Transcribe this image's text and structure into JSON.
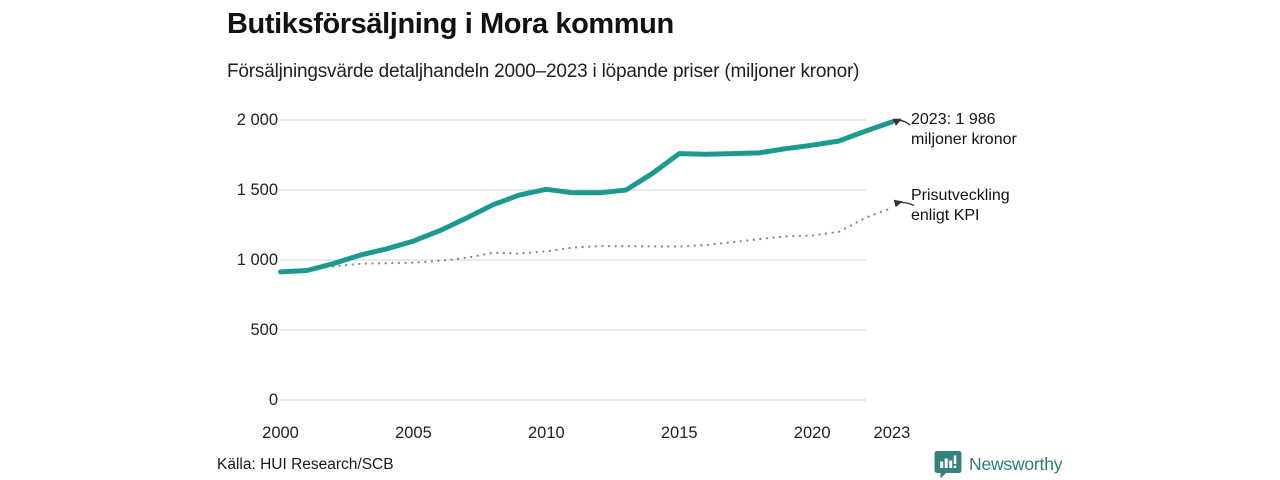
{
  "header": {
    "title": "Butiksförsäljning i Mora kommun",
    "subtitle": "Försäljningsvärde detaljhandeln 2000–2023 i löpande priser (miljoner kronor)"
  },
  "annotations": [
    {
      "line1": "2023: 1 986",
      "line2": "miljoner kronor",
      "target_series": "Butiksförsäljning"
    },
    {
      "line1": "Prisutveckling",
      "line2": "enligt KPI",
      "target_series": "KPI"
    }
  ],
  "footer": {
    "source": "Källa: HUI Research/SCB",
    "brand_name": "Newsworthy",
    "brand_icon": "newsworthy-logo-icon"
  },
  "colors": {
    "sales_line": "#1d9a8f",
    "kpi_line": "#8c8c8c",
    "gridline": "#dcdcdc",
    "brand_teal": "#2e7d74",
    "brand_icon_fill": "#35837a",
    "arrow": "#333333"
  },
  "chart_data": {
    "type": "line",
    "title": "Butiksförsäljning i Mora kommun",
    "subtitle": "Försäljningsvärde detaljhandeln 2000–2023 i löpande priser (miljoner kronor)",
    "x": [
      2000,
      2001,
      2002,
      2003,
      2004,
      2005,
      2006,
      2007,
      2008,
      2009,
      2010,
      2011,
      2012,
      2013,
      2014,
      2015,
      2016,
      2017,
      2018,
      2019,
      2020,
      2021,
      2022,
      2023
    ],
    "series": [
      {
        "name": "Butiksförsäljning (miljoner kronor, löpande priser)",
        "style": "solid",
        "color": "#1d9a8f",
        "values": [
          915,
          925,
          975,
          1035,
          1080,
          1135,
          1210,
          1300,
          1395,
          1465,
          1505,
          1480,
          1480,
          1500,
          1620,
          1760,
          1755,
          1760,
          1765,
          1795,
          1820,
          1850,
          1920,
          1986
        ]
      },
      {
        "name": "Prisutveckling enligt KPI",
        "style": "dotted",
        "color": "#8c8c8c",
        "values": [
          912,
          934,
          954,
          973,
          977,
          981,
          994,
          1016,
          1052,
          1046,
          1062,
          1089,
          1099,
          1099,
          1097,
          1096,
          1107,
          1127,
          1149,
          1169,
          1175,
          1201,
          1301,
          1372
        ]
      }
    ],
    "last_point_label": "2023: 1 986 miljoner kronor",
    "ylim": [
      0,
      2000
    ],
    "yticks": [
      0,
      500,
      1000,
      1500,
      2000
    ],
    "ytick_labels": [
      "0",
      "500",
      "1 000",
      "1 500",
      "2 000"
    ],
    "xticks": [
      2000,
      2005,
      2010,
      2015,
      2020,
      2023
    ],
    "xtick_labels": [
      "2000",
      "2005",
      "2010",
      "2015",
      "2020",
      "2023"
    ],
    "grid": "horizontal",
    "legend_position": "annotations-right"
  }
}
